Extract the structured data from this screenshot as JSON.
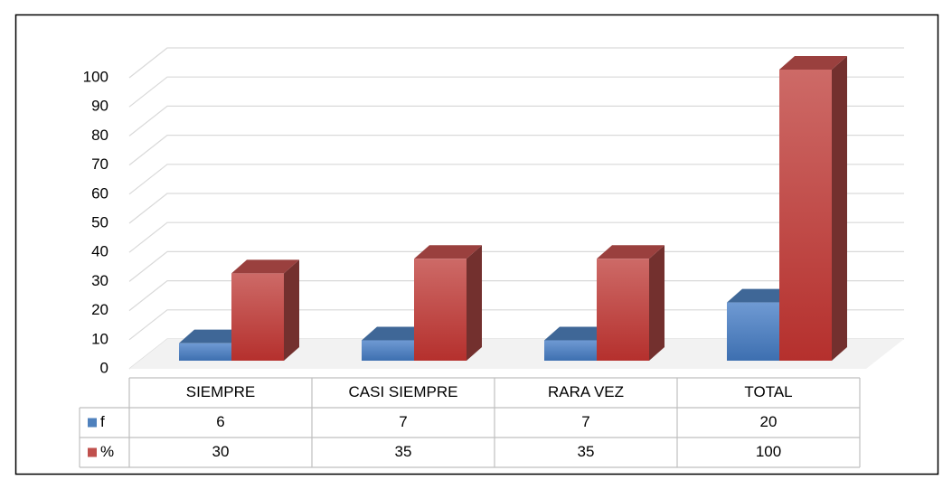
{
  "chart_data": {
    "type": "bar3d",
    "categories": [
      "SIEMPRE",
      "CASI SIEMPRE",
      "RARA VEZ",
      "TOTAL"
    ],
    "series": [
      {
        "name": "f",
        "color": "#4f81bd",
        "values": [
          6,
          7,
          7,
          20
        ]
      },
      {
        "name": "%",
        "color": "#c0504d",
        "values": [
          30,
          35,
          35,
          100
        ]
      }
    ],
    "ylim": [
      0,
      100
    ],
    "yticks": [
      0,
      10,
      20,
      30,
      40,
      50,
      60,
      70,
      80,
      90,
      100
    ],
    "grid": true,
    "data_table": true
  }
}
